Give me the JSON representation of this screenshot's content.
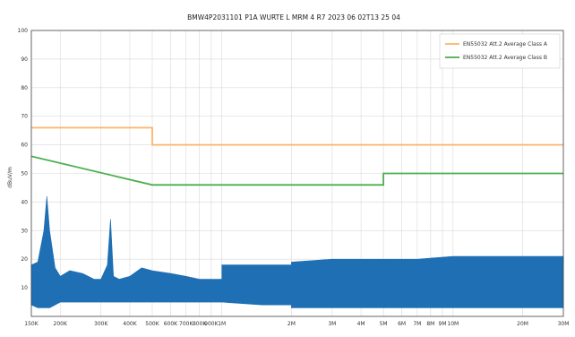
{
  "chart_data": {
    "type": "line",
    "title": "BMW4P2031101 P1A WURTE L MRM 4 R7 2023 06 02T13 25 04",
    "xlabel": "",
    "ylabel": "dBuV/m",
    "x_scale": "log",
    "xlim_hz": [
      150000,
      30000000
    ],
    "ylim": [
      0,
      100
    ],
    "yticks": [
      0,
      10,
      20,
      30,
      40,
      50,
      60,
      70,
      80,
      90,
      100
    ],
    "ytick_labels": [
      "",
      "10",
      "20",
      "30",
      "40",
      "50",
      "60",
      "70",
      "80",
      "90",
      "100"
    ],
    "xticks": [
      {
        "hz": 150000,
        "label": "150K"
      },
      {
        "hz": 200000,
        "label": "200K"
      },
      {
        "hz": 300000,
        "label": "300K"
      },
      {
        "hz": 400000,
        "label": "400K"
      },
      {
        "hz": 500000,
        "label": "500K"
      },
      {
        "hz": 600000,
        "label": "600K"
      },
      {
        "hz": 700000,
        "label": "700K"
      },
      {
        "hz": 800000,
        "label": "800K"
      },
      {
        "hz": 900000,
        "label": "900K"
      },
      {
        "hz": 1000000,
        "label": "1M"
      },
      {
        "hz": 2000000,
        "label": "2M"
      },
      {
        "hz": 3000000,
        "label": "3M"
      },
      {
        "hz": 4000000,
        "label": "4M"
      },
      {
        "hz": 5000000,
        "label": "5M"
      },
      {
        "hz": 6000000,
        "label": "6M"
      },
      {
        "hz": 7000000,
        "label": "7M"
      },
      {
        "hz": 8000000,
        "label": "8M"
      },
      {
        "hz": 9000000,
        "label": "9M"
      },
      {
        "hz": 10000000,
        "label": "10M"
      },
      {
        "hz": 20000000,
        "label": "20M"
      },
      {
        "hz": 30000000,
        "label": "30M"
      }
    ],
    "grid": true,
    "legend_position": "top-right",
    "colors": {
      "class_a": "#ffb36b",
      "class_b": "#4caf50",
      "measurement": "#1f6fb4"
    },
    "series": [
      {
        "name": "EN55032 Att.2 Average Class A",
        "color": "#ffb36b",
        "x": [
          150000,
          500000,
          500000,
          30000000
        ],
        "y": [
          66,
          66,
          60,
          60
        ]
      },
      {
        "name": "EN55032 Att.2 Average Class B",
        "color": "#4caf50",
        "x": [
          150000,
          500000,
          5000000,
          5000000,
          30000000
        ],
        "y": [
          56,
          46,
          46,
          50,
          50
        ]
      },
      {
        "name": "",
        "color": "#1f6fb4",
        "kind": "area",
        "x": [
          150000,
          160000,
          170000,
          175000,
          180000,
          190000,
          200000,
          220000,
          250000,
          280000,
          300000,
          320000,
          330000,
          340000,
          360000,
          400000,
          450000,
          500000,
          600000,
          700000,
          800000,
          900000,
          1000000,
          1000000,
          1500000,
          2000000,
          2000000,
          3000000,
          4000000,
          5000000,
          7000000,
          10000000,
          15000000,
          20000000,
          25000000,
          30000000
        ],
        "y": [
          18,
          19,
          30,
          42,
          30,
          17,
          14,
          16,
          15,
          13,
          13,
          18,
          34,
          14,
          13,
          14,
          17,
          16,
          15,
          14,
          13,
          13,
          13,
          18,
          18,
          18,
          19,
          20,
          20,
          20,
          20,
          21,
          21,
          21,
          21,
          21
        ],
        "y_low": [
          4,
          3,
          3,
          3,
          3,
          4,
          5,
          5,
          5,
          5,
          5,
          5,
          5,
          5,
          5,
          5,
          5,
          5,
          5,
          5,
          5,
          5,
          5,
          5,
          4,
          4,
          3,
          3,
          3,
          3,
          3,
          3,
          3,
          3,
          3,
          3
        ]
      }
    ]
  }
}
